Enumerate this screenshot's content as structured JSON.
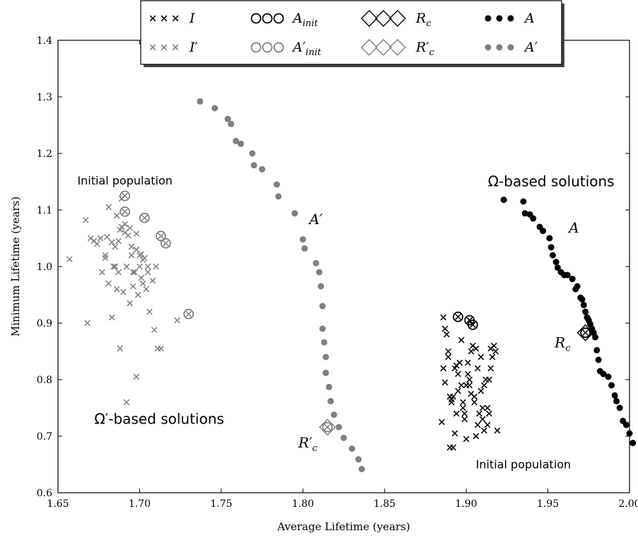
{
  "chart_data": {
    "type": "scatter",
    "title": "",
    "xlabel": "Average Lifetime (years)",
    "ylabel": "Minimum Lifetime (years)",
    "xlim": [
      1.65,
      2.0
    ],
    "ylim": [
      0.6,
      1.4
    ],
    "xticks": [
      "1.65",
      "1.70",
      "1.75",
      "1.80",
      "1.85",
      "1.90",
      "1.95",
      "2.00"
    ],
    "yticks": [
      "0.6",
      "0.7",
      "0.8",
      "0.9",
      "1.0",
      "1.1",
      "1.2",
      "1.3",
      "1.4"
    ],
    "grid": false,
    "legend_position": "top-center",
    "colors": {
      "black": "#000000",
      "gray": "#808080"
    },
    "legend": [
      {
        "key": "I",
        "text": "I",
        "marker": "x",
        "color": "#000000"
      },
      {
        "key": "Ainit",
        "text": "A",
        "sub": "init",
        "marker": "open-circle",
        "color": "#000000"
      },
      {
        "key": "Rc",
        "text": "R",
        "sub": "c",
        "marker": "diamond",
        "color": "#000000"
      },
      {
        "key": "A",
        "text": "A",
        "marker": "filled-circle",
        "color": "#000000"
      },
      {
        "key": "Ip",
        "text": "I′",
        "marker": "x",
        "color": "#808080"
      },
      {
        "key": "Ainitp",
        "text": "A′",
        "sub": "init",
        "marker": "open-circle",
        "color": "#808080"
      },
      {
        "key": "Rcp",
        "text": "R′",
        "sub": "c",
        "marker": "diamond",
        "color": "#808080"
      },
      {
        "key": "Ap",
        "text": "A′",
        "marker": "filled-circle",
        "color": "#808080"
      }
    ],
    "annotations": [
      {
        "text": "Initial population",
        "x": 1.691,
        "y": 1.145
      },
      {
        "text": "Ω-based solutions",
        "x": 1.952,
        "y": 1.142
      },
      {
        "text": "Ω′-based solutions",
        "x": 1.712,
        "y": 0.722
      },
      {
        "text": "Initial population",
        "x": 1.935,
        "y": 0.643
      }
    ],
    "curve_labels": [
      {
        "text": "A′",
        "sub": "",
        "x": 1.808,
        "y": 1.075
      },
      {
        "text": "A",
        "sub": "",
        "x": 1.966,
        "y": 1.06
      },
      {
        "text": "R′",
        "sub": "c",
        "x": 1.803,
        "y": 0.68
      },
      {
        "text": "R",
        "sub": "c",
        "x": 1.959,
        "y": 0.857
      }
    ],
    "series": [
      {
        "name": "I′",
        "marker": "x",
        "color": "#808080",
        "x": [
          1.657,
          1.667,
          1.67,
          1.672,
          1.674,
          1.677,
          1.679,
          1.68,
          1.681,
          1.683,
          1.684,
          1.685,
          1.686,
          1.687,
          1.688,
          1.689,
          1.69,
          1.691,
          1.692,
          1.693,
          1.694,
          1.695,
          1.696,
          1.697,
          1.698,
          1.699,
          1.7,
          1.701,
          1.702,
          1.703,
          1.704,
          1.705,
          1.706,
          1.708,
          1.71,
          1.681,
          1.686,
          1.689,
          1.694,
          1.698,
          1.7,
          1.705,
          1.709,
          1.713,
          1.723,
          1.668,
          1.683,
          1.688,
          1.692,
          1.698,
          1.711,
          1.685,
          1.696,
          1.701,
          1.687,
          1.679,
          1.691,
          1.676,
          1.695,
          1.702
        ],
        "y": [
          1.013,
          1.082,
          1.05,
          1.045,
          1.04,
          0.99,
          1.02,
          1.052,
          0.97,
          1.043,
          1.0,
          1.035,
          0.96,
          0.99,
          1.065,
          1.12,
          0.955,
          1.075,
          1.0,
          1.055,
          0.935,
          1.035,
          0.965,
          0.99,
          1.058,
          0.95,
          1.0,
          1.022,
          0.97,
          1.015,
          0.96,
          0.99,
          0.92,
          0.975,
          1.0,
          1.105,
          1.09,
          1.07,
          1.068,
          1.03,
          1.02,
          1.0,
          0.888,
          0.855,
          0.905,
          0.9,
          0.91,
          0.855,
          0.76,
          0.805,
          0.855,
          1.0,
          0.99,
          0.98,
          1.045,
          1.015,
          1.06,
          1.05,
          1.02,
          1.012
        ]
      },
      {
        "name": "A′init",
        "marker": "open-circle",
        "color": "#808080",
        "x": [
          1.691,
          1.691,
          1.703,
          1.713,
          1.716,
          1.73
        ],
        "y": [
          1.125,
          1.097,
          1.086,
          1.054,
          1.041,
          0.916
        ]
      },
      {
        "name": "A′",
        "marker": "filled-circle",
        "color": "#808080",
        "x": [
          1.737,
          1.746,
          1.754,
          1.756,
          1.759,
          1.762,
          1.769,
          1.77,
          1.775,
          1.784,
          1.785,
          1.795,
          1.8,
          1.801,
          1.808,
          1.81,
          1.811,
          1.812,
          1.812,
          1.813,
          1.814,
          1.814,
          1.816,
          1.817,
          1.819,
          1.822,
          1.825,
          1.83,
          1.834,
          1.836
        ],
        "y": [
          1.292,
          1.28,
          1.261,
          1.252,
          1.222,
          1.217,
          1.2,
          1.179,
          1.172,
          1.145,
          1.124,
          1.094,
          1.048,
          1.032,
          1.006,
          0.99,
          0.965,
          0.93,
          0.89,
          0.866,
          0.84,
          0.812,
          0.787,
          0.762,
          0.738,
          0.716,
          0.697,
          0.678,
          0.659,
          0.642
        ]
      },
      {
        "name": "R′c",
        "marker": "diamond",
        "color": "#808080",
        "x": [
          1.815
        ],
        "y": [
          0.716
        ]
      },
      {
        "name": "I",
        "marker": "x",
        "color": "#000000",
        "x": [
          1.885,
          1.887,
          1.889,
          1.891,
          1.893,
          1.895,
          1.897,
          1.899,
          1.901,
          1.903,
          1.905,
          1.907,
          1.909,
          1.911,
          1.913,
          1.915,
          1.917,
          1.919,
          1.886,
          1.89,
          1.894,
          1.898,
          1.902,
          1.906,
          1.91,
          1.914,
          1.888,
          1.892,
          1.896,
          1.9,
          1.904,
          1.908,
          1.912,
          1.916,
          1.887,
          1.891,
          1.895,
          1.899,
          1.903,
          1.907,
          1.911,
          1.915,
          1.889,
          1.893,
          1.897,
          1.901,
          1.905,
          1.909,
          1.913,
          1.918,
          1.886,
          1.894,
          1.902,
          1.91,
          1.89,
          1.898,
          1.906,
          1.914,
          1.892,
          1.9
        ],
        "y": [
          0.725,
          0.89,
          0.84,
          0.76,
          0.82,
          0.78,
          0.87,
          0.73,
          0.81,
          0.85,
          0.77,
          0.72,
          0.84,
          0.79,
          0.75,
          0.82,
          0.86,
          0.71,
          0.91,
          0.68,
          0.825,
          0.75,
          0.79,
          0.855,
          0.73,
          0.8,
          0.88,
          0.77,
          0.83,
          0.695,
          0.86,
          0.74,
          0.8,
          0.84,
          0.795,
          0.765,
          0.81,
          0.74,
          0.775,
          0.82,
          0.71,
          0.855,
          0.85,
          0.705,
          0.79,
          0.83,
          0.76,
          0.78,
          0.72,
          0.85,
          0.82,
          0.74,
          0.8,
          0.75,
          0.77,
          0.76,
          0.7,
          0.74,
          0.68,
          0.79
        ]
      },
      {
        "name": "Ainit",
        "marker": "open-circle",
        "color": "#000000",
        "x": [
          1.895,
          1.902,
          1.904
        ],
        "y": [
          0.911,
          0.905,
          0.897
        ]
      },
      {
        "name": "A",
        "marker": "filled-circle",
        "color": "#000000",
        "x": [
          1.923,
          1.935,
          1.936,
          1.939,
          1.941,
          1.945,
          1.947,
          1.951,
          1.952,
          1.953,
          1.955,
          1.956,
          1.958,
          1.96,
          1.962,
          1.965,
          1.967,
          1.968,
          1.97,
          1.971,
          1.972,
          1.973,
          1.974,
          1.975,
          1.976,
          1.977,
          1.978,
          1.979,
          1.98,
          1.981,
          1.982,
          1.984,
          1.987,
          1.989,
          1.991,
          1.992,
          1.994,
          1.996,
          1.998,
          2.0,
          2.002
        ],
        "y": [
          1.118,
          1.115,
          1.094,
          1.092,
          1.085,
          1.07,
          1.063,
          1.05,
          1.034,
          1.02,
          1.008,
          0.998,
          0.99,
          0.985,
          0.985,
          0.978,
          0.96,
          0.965,
          0.945,
          0.942,
          0.932,
          0.92,
          0.91,
          0.905,
          0.898,
          0.89,
          0.883,
          0.875,
          0.852,
          0.835,
          0.815,
          0.81,
          0.805,
          0.79,
          0.772,
          0.762,
          0.75,
          0.727,
          0.72,
          0.705,
          0.688
        ]
      },
      {
        "name": "Rc",
        "marker": "diamond",
        "color": "#000000",
        "x": [
          1.973
        ],
        "y": [
          0.883
        ]
      }
    ]
  }
}
